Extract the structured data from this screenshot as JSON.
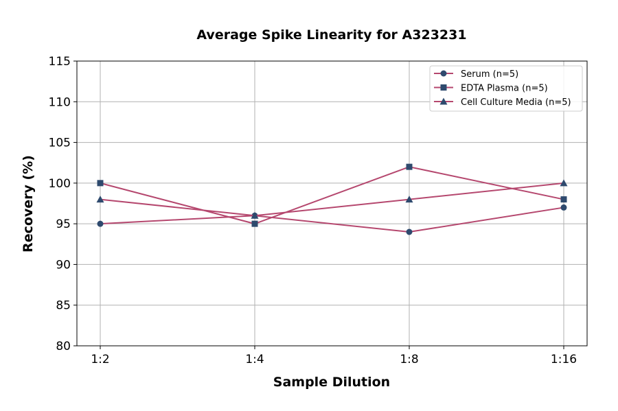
{
  "chart_data": {
    "type": "line",
    "title": "Average Spike Linearity for A323231",
    "xlabel": "Sample Dilution",
    "ylabel": "Recovery (%)",
    "categories": [
      "1:2",
      "1:4",
      "1:8",
      "1:16"
    ],
    "ylim": [
      80,
      115
    ],
    "yticks": [
      80,
      85,
      90,
      95,
      100,
      105,
      110,
      115
    ],
    "grid": true,
    "legend_placement": "top-right",
    "line_color": "#b5476e",
    "marker_color": "#2e4a6e",
    "series": [
      {
        "name": "Serum (n=5)",
        "marker": "circle",
        "values": [
          95,
          96,
          94,
          97
        ]
      },
      {
        "name": "EDTA Plasma (n=5)",
        "marker": "square",
        "values": [
          100,
          95,
          102,
          98
        ]
      },
      {
        "name": "Cell Culture Media (n=5)",
        "marker": "triangle",
        "values": [
          98,
          96,
          98,
          100
        ]
      }
    ]
  }
}
